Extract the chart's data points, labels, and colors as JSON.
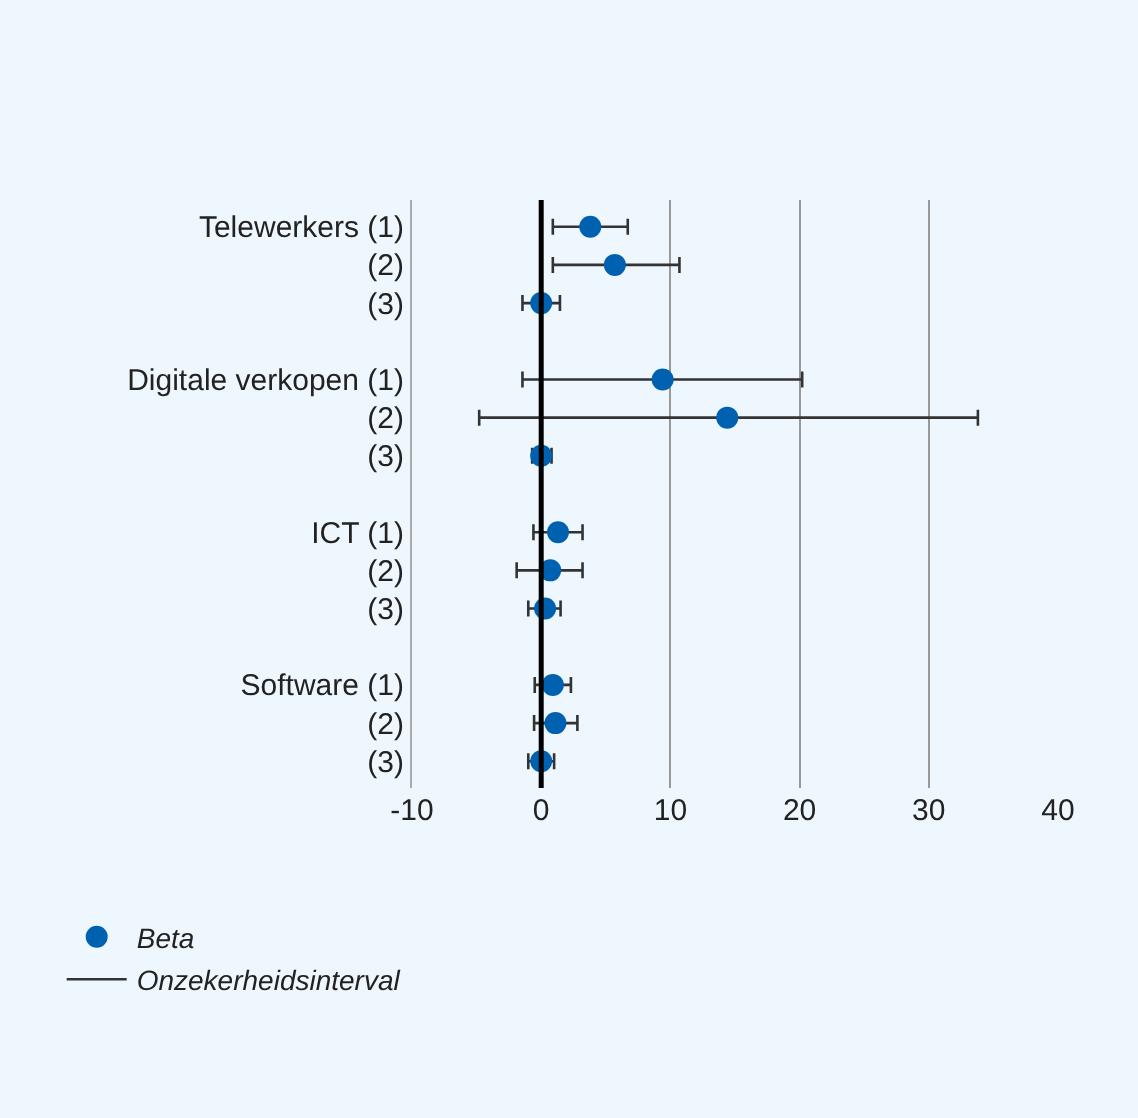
{
  "chart_data": {
    "type": "scatter",
    "orientation": "horizontal",
    "categories": [
      "Telewerkers (1)",
      "(2)",
      "(3)",
      null,
      "Digitale verkopen (1)",
      "(2)",
      "(3)",
      null,
      "ICT (1)",
      "(2)",
      "(3)",
      null,
      "Software (1)",
      "(2)",
      "(3)"
    ],
    "series": [
      {
        "name": "Beta",
        "color": "#0061b0",
        "values": [
          3.8,
          5.7,
          0,
          null,
          9.4,
          14.4,
          0,
          null,
          1.3,
          0.7,
          0.3,
          null,
          0.9,
          1.1,
          0
        ],
        "errors": [
          [
            0.9,
            6.7
          ],
          [
            0.9,
            10.7
          ],
          [
            -1.45,
            1.45
          ],
          null,
          [
            -1.45,
            20.2
          ],
          [
            -4.8,
            33.8
          ],
          [
            -0.7,
            0.8
          ],
          null,
          [
            -0.6,
            3.2
          ],
          [
            -1.9,
            3.2
          ],
          [
            -1.0,
            1.5
          ],
          null,
          [
            -0.5,
            2.3
          ],
          [
            -0.55,
            2.8
          ],
          [
            -1.0,
            1.0
          ]
        ]
      }
    ],
    "annotations": [
      "Onzekerheidsinterval"
    ],
    "xlim": [
      -10,
      40
    ],
    "xticks": [
      -10,
      0,
      10,
      20,
      30,
      40
    ],
    "ref_lines": [
      {
        "axis": "x",
        "value": 0,
        "color": "#000000"
      }
    ],
    "grid": "x",
    "legend": "bottom left",
    "marker": "circle"
  }
}
